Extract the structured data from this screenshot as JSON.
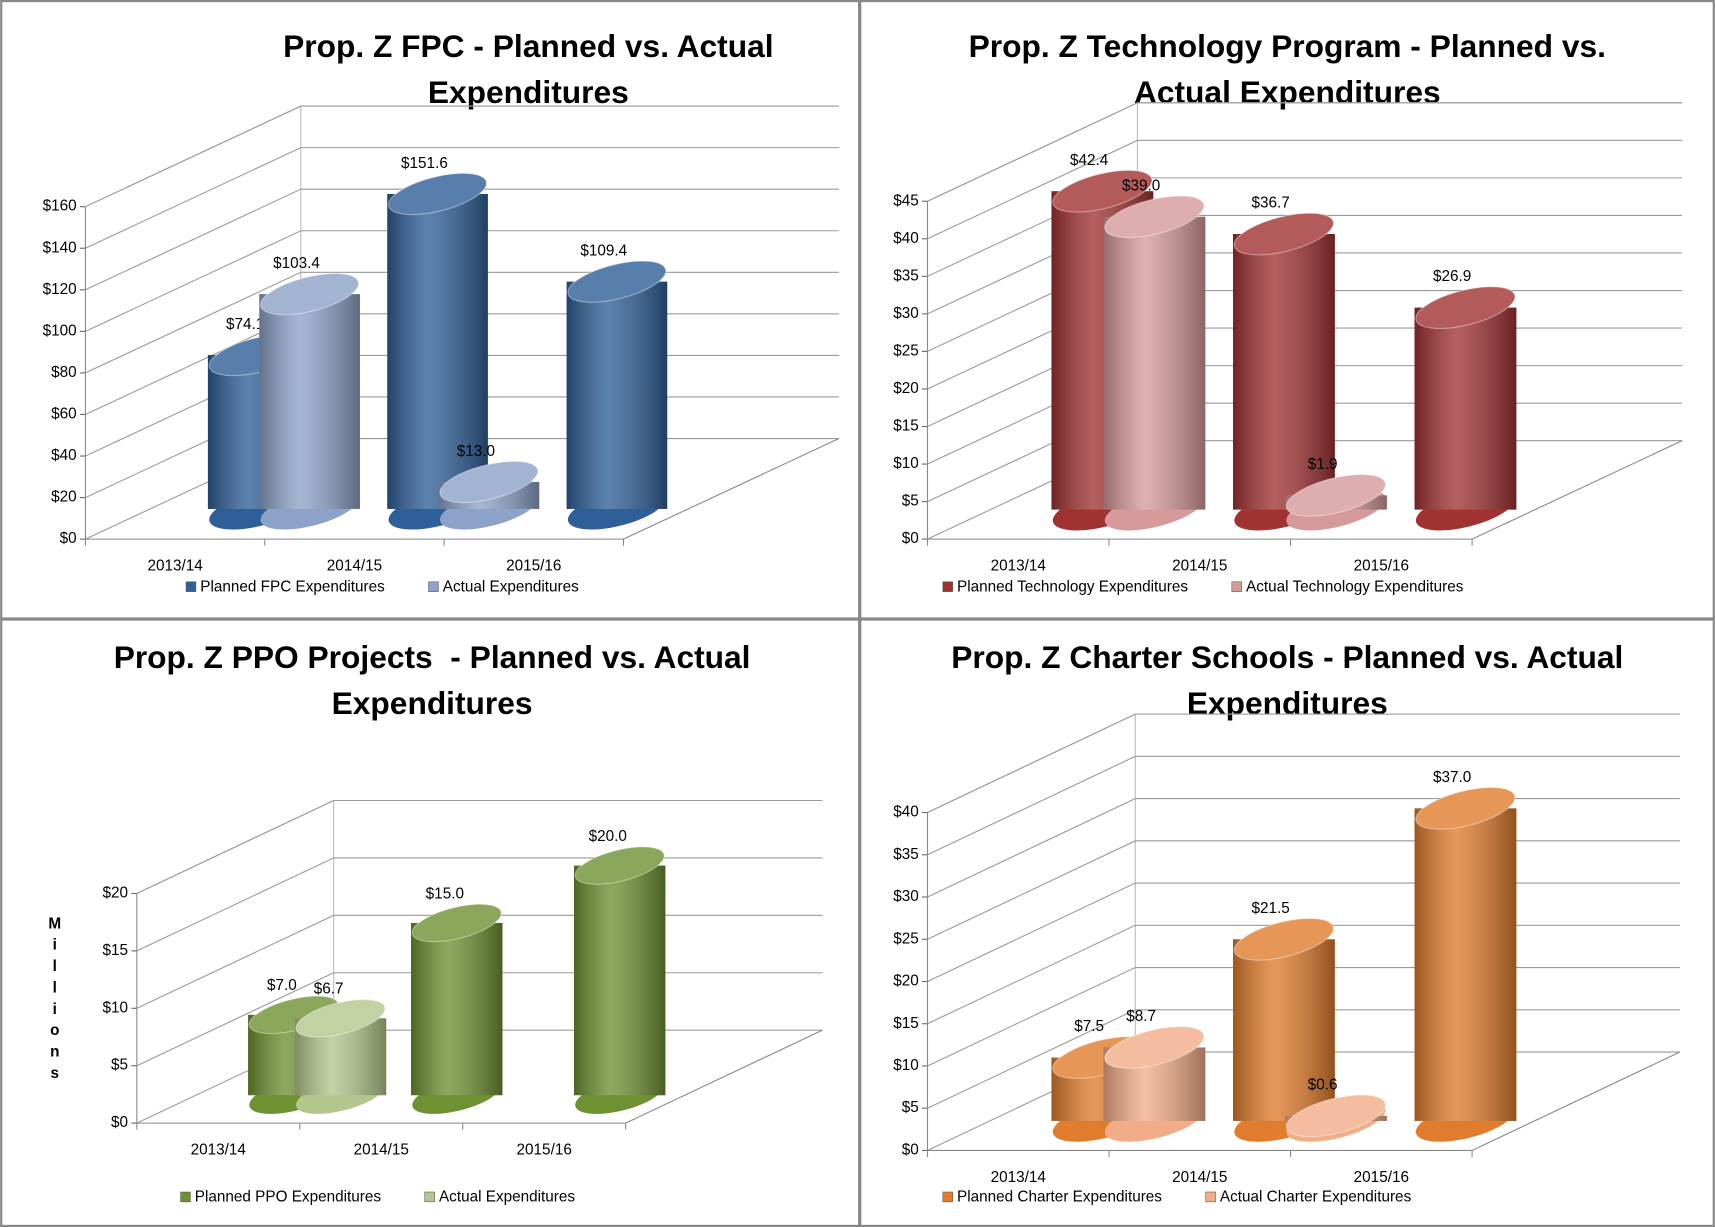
{
  "chart_data": [
    {
      "type": "bar",
      "title": "Prop. Z FPC - Planned vs. Actual Expenditures",
      "categories": [
        "2013/14",
        "2014/15",
        "2015/16"
      ],
      "series": [
        {
          "name": "Planned FPC Expenditures",
          "color": "#2f5f98",
          "values": [
            74.1,
            151.6,
            109.4
          ],
          "value_labels": [
            "$74.1",
            "$151.6",
            "$109.4"
          ]
        },
        {
          "name": "Actual Expenditures",
          "color": "#8da2c9",
          "values": [
            103.4,
            13.0,
            null
          ],
          "value_labels": [
            "$103.4",
            "$13.0",
            null
          ]
        }
      ],
      "ylim": [
        0,
        160
      ],
      "yticks": [
        {
          "value": 0,
          "label": "$0"
        },
        {
          "value": 20,
          "label": "$20"
        },
        {
          "value": 40,
          "label": "$40"
        },
        {
          "value": 60,
          "label": "$60"
        },
        {
          "value": 80,
          "label": "$80"
        },
        {
          "value": 100,
          "label": "$100"
        },
        {
          "value": 120,
          "label": "$120"
        },
        {
          "value": 140,
          "label": "$140"
        },
        {
          "value": 160,
          "label": "$160"
        }
      ],
      "grid": true,
      "legend": "bottom"
    },
    {
      "type": "bar",
      "title": "Prop. Z Technology Program - Planned vs. Actual Expenditures",
      "categories": [
        "2013/14",
        "2014/15",
        "2015/16"
      ],
      "series": [
        {
          "name": "Planned Technology Expenditures",
          "color": "#a13232",
          "values": [
            42.4,
            36.7,
            26.9
          ],
          "value_labels": [
            "$42.4",
            "$36.7",
            "$26.9"
          ]
        },
        {
          "name": "Actual Technology Expenditures",
          "color": "#d69a9a",
          "values": [
            39.0,
            1.9,
            null
          ],
          "value_labels": [
            "$39.0",
            "$1.9",
            null
          ]
        }
      ],
      "ylim": [
        0,
        45
      ],
      "yticks": [
        {
          "value": 0,
          "label": "$0"
        },
        {
          "value": 5,
          "label": "$5"
        },
        {
          "value": 10,
          "label": "$10"
        },
        {
          "value": 15,
          "label": "$15"
        },
        {
          "value": 20,
          "label": "$20"
        },
        {
          "value": 25,
          "label": "$25"
        },
        {
          "value": 30,
          "label": "$30"
        },
        {
          "value": 35,
          "label": "$35"
        },
        {
          "value": 40,
          "label": "$40"
        },
        {
          "value": 45,
          "label": "$45"
        }
      ],
      "grid": true,
      "legend": "bottom"
    },
    {
      "type": "bar",
      "title": "Prop. Z PPO Projects  - Planned vs. Actual Expenditures",
      "y_label": "Millions",
      "categories": [
        "2013/14",
        "2014/15",
        "2015/16"
      ],
      "series": [
        {
          "name": "Planned PPO Expenditures",
          "color": "#6e9132",
          "values": [
            7.0,
            15.0,
            20.0
          ],
          "value_labels": [
            "$7.0",
            "$15.0",
            "$20.0"
          ]
        },
        {
          "name": "Actual Expenditures",
          "color": "#b3c78c",
          "values": [
            6.7,
            null,
            null
          ],
          "value_labels": [
            "$6.7",
            null,
            null
          ]
        }
      ],
      "ylim": [
        0,
        20
      ],
      "yticks": [
        {
          "value": 0,
          "label": "$0"
        },
        {
          "value": 5,
          "label": "$5"
        },
        {
          "value": 10,
          "label": "$10"
        },
        {
          "value": 15,
          "label": "$15"
        },
        {
          "value": 20,
          "label": "$20"
        }
      ],
      "grid": true,
      "legend": "bottom"
    },
    {
      "type": "bar",
      "title": "Prop. Z Charter Schools - Planned vs. Actual Expenditures",
      "categories": [
        "2013/14",
        "2014/15",
        "2015/16"
      ],
      "series": [
        {
          "name": "Planned Charter Expenditures",
          "color": "#e07c2c",
          "values": [
            7.5,
            21.5,
            37.0
          ],
          "value_labels": [
            "$7.5",
            "$21.5",
            "$37.0"
          ]
        },
        {
          "name": "Actual Charter Expenditures",
          "color": "#f2ad88",
          "values": [
            8.7,
            0.6,
            null
          ],
          "value_labels": [
            "$8.7",
            "$0.6",
            null
          ]
        }
      ],
      "ylim": [
        0,
        40
      ],
      "yticks": [
        {
          "value": 0,
          "label": "$0"
        },
        {
          "value": 5,
          "label": "$5"
        },
        {
          "value": 10,
          "label": "$10"
        },
        {
          "value": 15,
          "label": "$15"
        },
        {
          "value": 20,
          "label": "$20"
        },
        {
          "value": 25,
          "label": "$25"
        },
        {
          "value": 30,
          "label": "$30"
        },
        {
          "value": 35,
          "label": "$35"
        },
        {
          "value": 40,
          "label": "$40"
        }
      ],
      "grid": true,
      "legend": "bottom"
    }
  ]
}
